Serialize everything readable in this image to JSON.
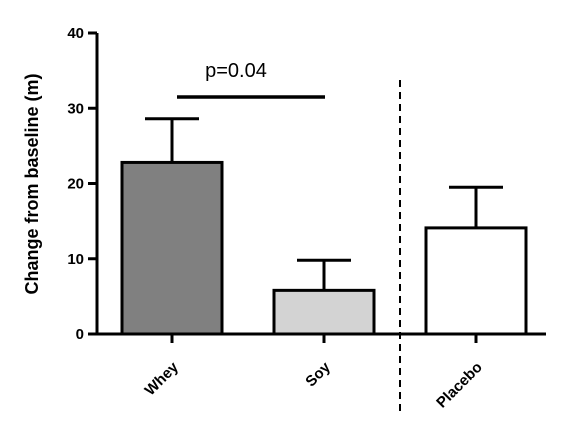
{
  "chart_data": {
    "type": "bar",
    "categories": [
      "Whey",
      "Soy",
      "Placebo"
    ],
    "values": [
      22.8,
      5.8,
      14.1
    ],
    "error_up": [
      5.8,
      4.0,
      5.4
    ],
    "colors": [
      "#808080",
      "#d3d3d3",
      "#ffffff"
    ],
    "title": "",
    "xlabel": "",
    "ylabel": "Change from baseline (m)",
    "ylim": [
      0,
      40
    ],
    "yticks": [
      0,
      10,
      20,
      30,
      40
    ],
    "ytick_labels": [
      "0",
      "10",
      "20",
      "30",
      "40"
    ],
    "grid": false,
    "annotations": [
      {
        "text": "p=0.04",
        "between": [
          "Whey",
          "Soy"
        ],
        "y": 31.5
      }
    ],
    "separator_between": [
      "Soy",
      "Placebo"
    ]
  }
}
